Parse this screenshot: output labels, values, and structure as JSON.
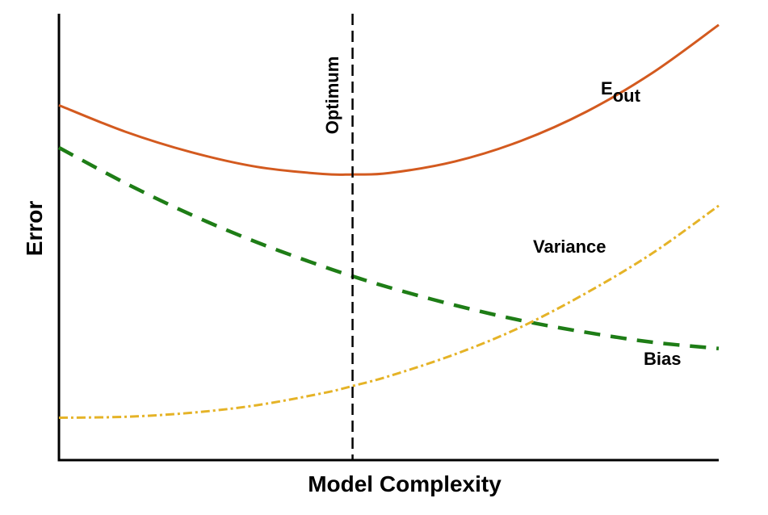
{
  "chart_data": {
    "type": "line",
    "title": "",
    "xlabel": "Model Complexity",
    "ylabel": "Error",
    "xlim": [
      0,
      1
    ],
    "ylim": [
      0,
      1
    ],
    "grid": false,
    "ticks": false,
    "series": [
      {
        "name": "Eout",
        "label_main": "E",
        "label_sub": "out",
        "color": "#d35a1f",
        "style": "solid",
        "x": [
          0,
          0.1,
          0.2,
          0.3,
          0.4,
          0.445,
          0.5,
          0.6,
          0.7,
          0.8,
          0.9,
          1.0
        ],
        "y": [
          0.795,
          0.736,
          0.69,
          0.657,
          0.641,
          0.64,
          0.643,
          0.669,
          0.715,
          0.781,
          0.868,
          0.975
        ]
      },
      {
        "name": "Bias",
        "color": "#1e7d16",
        "style": "dashed",
        "x": [
          0,
          0.1,
          0.2,
          0.3,
          0.4,
          0.445,
          0.5,
          0.6,
          0.7,
          0.8,
          0.9,
          1.0
        ],
        "y": [
          0.7,
          0.621,
          0.55,
          0.488,
          0.434,
          0.412,
          0.387,
          0.347,
          0.313,
          0.286,
          0.264,
          0.25
        ]
      },
      {
        "name": "Variance",
        "color": "#e5b327",
        "style": "dashdot",
        "x": [
          0,
          0.1,
          0.2,
          0.3,
          0.4,
          0.445,
          0.5,
          0.6,
          0.7,
          0.8,
          0.9,
          1.0
        ],
        "y": [
          0.095,
          0.097,
          0.106,
          0.123,
          0.15,
          0.166,
          0.188,
          0.237,
          0.298,
          0.375,
          0.464,
          0.57
        ]
      }
    ],
    "annotations": [
      {
        "type": "vline",
        "x": 0.445,
        "label": "Optimum",
        "style": "dashed",
        "color": "#000000"
      }
    ]
  }
}
